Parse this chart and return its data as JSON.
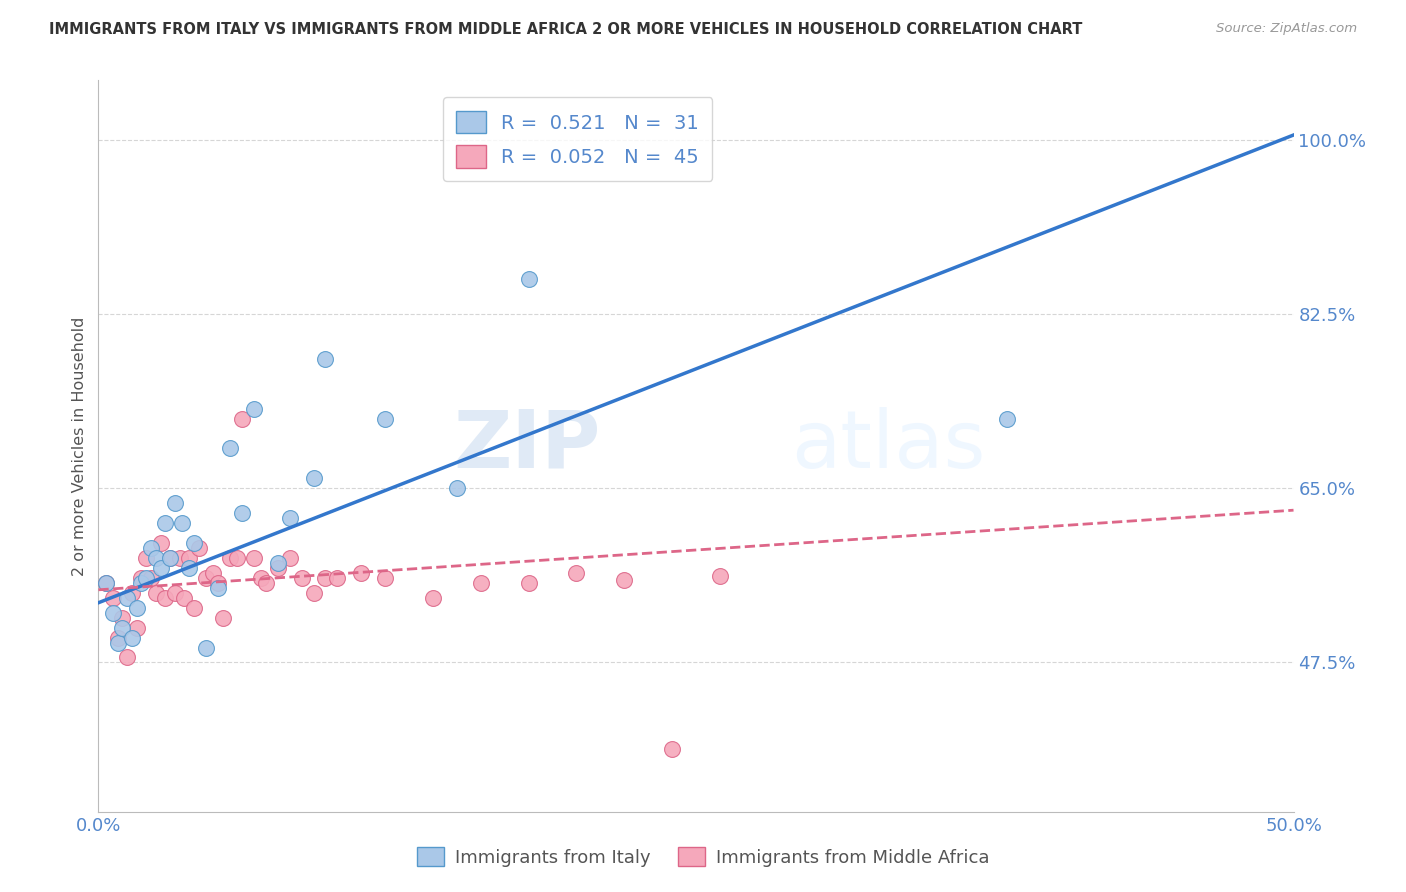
{
  "title": "IMMIGRANTS FROM ITALY VS IMMIGRANTS FROM MIDDLE AFRICA 2 OR MORE VEHICLES IN HOUSEHOLD CORRELATION CHART",
  "source": "Source: ZipAtlas.com",
  "ylabel": "2 or more Vehicles in Household",
  "xlim": [
    0.0,
    0.5
  ],
  "ylim": [
    0.325,
    1.06
  ],
  "yticks": [
    0.475,
    0.65,
    0.825,
    1.0
  ],
  "ytick_labels": [
    "47.5%",
    "65.0%",
    "82.5%",
    "100.0%"
  ],
  "xticks": [
    0.0,
    0.1,
    0.2,
    0.3,
    0.4,
    0.5
  ],
  "xtick_labels": [
    "0.0%",
    "",
    "",
    "",
    "",
    "50.0%"
  ],
  "italy_color": "#aac8e8",
  "italy_edge_color": "#5599cc",
  "africa_color": "#f5a8bb",
  "africa_edge_color": "#dd6688",
  "italy_line_color": "#3377cc",
  "africa_line_color": "#dd6688",
  "R_italy": 0.521,
  "N_italy": 31,
  "R_africa": 0.052,
  "N_africa": 45,
  "watermark_zip": "ZIP",
  "watermark_atlas": "atlas",
  "background_color": "#ffffff",
  "grid_color": "#cccccc",
  "axis_color": "#5588cc",
  "italy_x": [
    0.003,
    0.006,
    0.008,
    0.01,
    0.012,
    0.014,
    0.016,
    0.018,
    0.02,
    0.022,
    0.024,
    0.026,
    0.028,
    0.03,
    0.032,
    0.035,
    0.038,
    0.04,
    0.045,
    0.05,
    0.055,
    0.06,
    0.065,
    0.075,
    0.08,
    0.09,
    0.095,
    0.12,
    0.15,
    0.18,
    0.38
  ],
  "italy_y": [
    0.555,
    0.525,
    0.495,
    0.51,
    0.54,
    0.5,
    0.53,
    0.555,
    0.56,
    0.59,
    0.58,
    0.57,
    0.615,
    0.58,
    0.635,
    0.615,
    0.57,
    0.595,
    0.49,
    0.55,
    0.69,
    0.625,
    0.73,
    0.575,
    0.62,
    0.66,
    0.78,
    0.72,
    0.65,
    0.86,
    0.72
  ],
  "africa_x": [
    0.003,
    0.006,
    0.008,
    0.01,
    0.012,
    0.014,
    0.016,
    0.018,
    0.02,
    0.022,
    0.024,
    0.026,
    0.028,
    0.03,
    0.032,
    0.034,
    0.036,
    0.038,
    0.04,
    0.042,
    0.045,
    0.048,
    0.05,
    0.052,
    0.055,
    0.058,
    0.06,
    0.065,
    0.068,
    0.07,
    0.075,
    0.08,
    0.085,
    0.09,
    0.095,
    0.1,
    0.11,
    0.12,
    0.14,
    0.16,
    0.18,
    0.2,
    0.22,
    0.24,
    0.26
  ],
  "africa_y": [
    0.555,
    0.54,
    0.5,
    0.52,
    0.48,
    0.545,
    0.51,
    0.56,
    0.58,
    0.56,
    0.545,
    0.595,
    0.54,
    0.58,
    0.545,
    0.58,
    0.54,
    0.58,
    0.53,
    0.59,
    0.56,
    0.565,
    0.555,
    0.52,
    0.58,
    0.58,
    0.72,
    0.58,
    0.56,
    0.555,
    0.57,
    0.58,
    0.56,
    0.545,
    0.56,
    0.56,
    0.565,
    0.56,
    0.54,
    0.555,
    0.555,
    0.565,
    0.558,
    0.388,
    0.562
  ],
  "italy_line_x0": 0.0,
  "italy_line_y0": 0.535,
  "italy_line_x1": 0.5,
  "italy_line_y1": 1.005,
  "africa_line_x0": 0.0,
  "africa_line_y0": 0.548,
  "africa_line_x1": 0.5,
  "africa_line_y1": 0.628
}
